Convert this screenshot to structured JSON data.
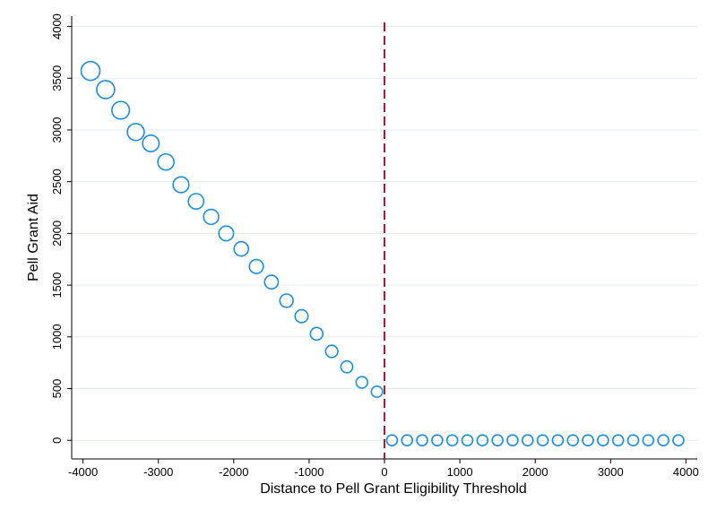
{
  "chart_data": {
    "type": "scatter",
    "title": "",
    "xlabel": "Distance to Pell Grant Eligibility Threshold",
    "ylabel": "Pell Grant Aid",
    "xlim": [
      -4150,
      4150
    ],
    "ylim": [
      -180,
      4100
    ],
    "xticks": [
      -4000,
      -3000,
      -2000,
      -1000,
      0,
      1000,
      2000,
      3000,
      4000
    ],
    "yticks": [
      0,
      500,
      1000,
      1500,
      2000,
      2500,
      3000,
      3500,
      4000
    ],
    "grid": "horizontal",
    "marker": "hollow circle",
    "marker_color": "#1a8fe3",
    "cutoff_line": {
      "x": 0,
      "color": "#a51c3c",
      "style": "dashed"
    },
    "series": [
      {
        "x": [
          -3900,
          -3700,
          -3500,
          -3300,
          -3100,
          -2900,
          -2700,
          -2500,
          -2300,
          -2100,
          -1900,
          -1700,
          -1500,
          -1300,
          -1100,
          -900,
          -700,
          -500,
          -300,
          -100,
          100,
          300,
          500,
          700,
          900,
          1100,
          1300,
          1500,
          1700,
          1900,
          2100,
          2300,
          2500,
          2700,
          2900,
          3100,
          3300,
          3500,
          3700,
          3900
        ],
        "y": [
          3570,
          3390,
          3190,
          2980,
          2870,
          2690,
          2470,
          2310,
          2160,
          2000,
          1850,
          1680,
          1530,
          1350,
          1200,
          1030,
          860,
          710,
          560,
          470,
          0,
          0,
          0,
          0,
          0,
          0,
          0,
          0,
          0,
          0,
          0,
          0,
          0,
          0,
          0,
          0,
          0,
          0,
          0,
          0
        ],
        "marker_size": [
          10.5,
          10,
          9.8,
          9.4,
          9.2,
          9,
          8.8,
          8.6,
          8.4,
          8.2,
          8,
          7.8,
          7.6,
          7.4,
          7.2,
          7,
          6.8,
          6.6,
          6.4,
          6.2,
          6,
          6,
          6,
          6,
          6,
          6,
          6,
          6,
          6,
          6,
          6,
          6,
          6,
          6,
          6,
          6,
          6,
          6,
          6,
          6
        ]
      }
    ]
  }
}
